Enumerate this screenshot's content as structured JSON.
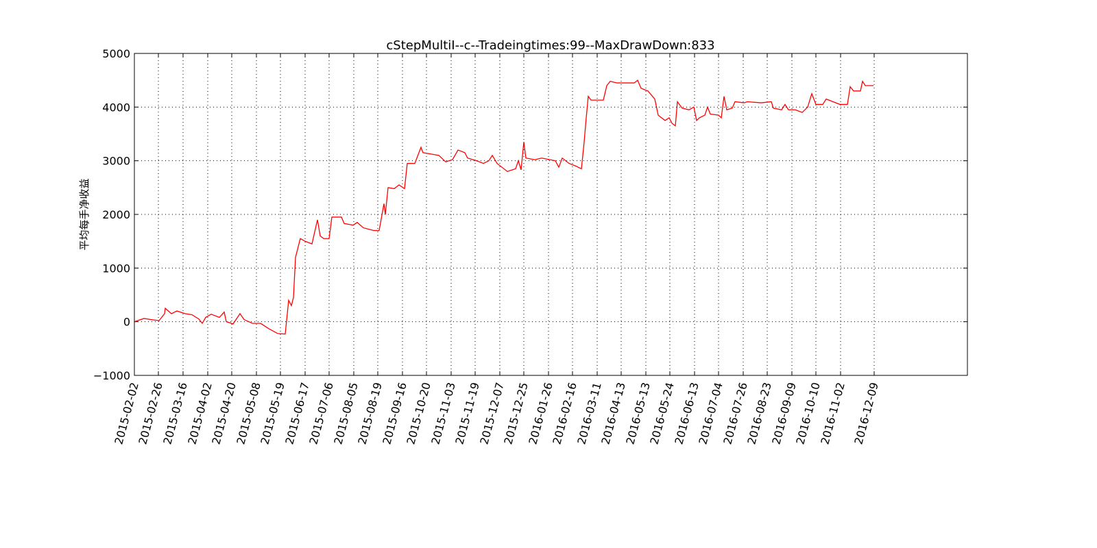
{
  "chart_data": {
    "type": "line",
    "title": "cStepMultiI--c--Tradeingtimes:99--MaxDrawDown:833",
    "ylabel": "平均每手净收益",
    "grid": true,
    "xlim": [
      0,
      1215
    ],
    "ylim": [
      -1000,
      5000
    ],
    "yticks": [
      {
        "value": -1000,
        "label": "−1000"
      },
      0,
      1000,
      2000,
      3000,
      4000,
      5000
    ],
    "xticks": [
      {
        "value": 0,
        "label": "2015-02-02"
      },
      {
        "value": 35,
        "label": "2015-02-26"
      },
      {
        "value": 71,
        "label": "2015-03-16"
      },
      {
        "value": 107,
        "label": "2015-04-02"
      },
      {
        "value": 142,
        "label": "2015-04-20"
      },
      {
        "value": 178,
        "label": "2015-05-08"
      },
      {
        "value": 213,
        "label": "2015-05-19"
      },
      {
        "value": 249,
        "label": "2015-06-17"
      },
      {
        "value": 284,
        "label": "2015-07-06"
      },
      {
        "value": 320,
        "label": "2015-08-05"
      },
      {
        "value": 355,
        "label": "2015-08-19"
      },
      {
        "value": 391,
        "label": "2015-09-16"
      },
      {
        "value": 426,
        "label": "2015-10-20"
      },
      {
        "value": 462,
        "label": "2015-11-03"
      },
      {
        "value": 497,
        "label": "2015-11-19"
      },
      {
        "value": 533,
        "label": "2015-12-07"
      },
      {
        "value": 568,
        "label": "2015-12-25"
      },
      {
        "value": 604,
        "label": "2016-01-26"
      },
      {
        "value": 639,
        "label": "2016-02-16"
      },
      {
        "value": 675,
        "label": "2016-03-11"
      },
      {
        "value": 710,
        "label": "2016-04-13"
      },
      {
        "value": 746,
        "label": "2016-05-13"
      },
      {
        "value": 781,
        "label": "2016-05-24"
      },
      {
        "value": 817,
        "label": "2016-06-13"
      },
      {
        "value": 852,
        "label": "2016-07-04"
      },
      {
        "value": 888,
        "label": "2016-07-26"
      },
      {
        "value": 923,
        "label": "2016-08-23"
      },
      {
        "value": 959,
        "label": "2016-09-09"
      },
      {
        "value": 994,
        "label": "2016-10-10"
      },
      {
        "value": 1030,
        "label": "2016-11-02"
      },
      {
        "value": 1079,
        "label": "2016-12-09"
      }
    ],
    "series": [
      {
        "color": "#ff0000",
        "x": [
          0,
          14,
          24,
          36,
          44,
          45,
          54,
          62,
          74,
          84,
          94,
          99,
          104,
          112,
          124,
          131,
          134,
          144,
          154,
          160,
          172,
          184,
          196,
          209,
          220,
          225,
          229,
          232,
          235,
          242,
          249,
          259,
          267,
          271,
          276,
          284,
          288,
          302,
          306,
          319,
          325,
          334,
          349,
          357,
          364,
          366,
          370,
          379,
          386,
          394,
          398,
          409,
          418,
          421,
          444,
          454,
          464,
          472,
          482,
          486,
          499,
          509,
          517,
          522,
          529,
          544,
          556,
          560,
          564,
          568,
          571,
          584,
          594,
          614,
          619,
          624,
          634,
          644,
          652,
          656,
          659,
          662,
          666,
          684,
          689,
          694,
          704,
          729,
          734,
          739,
          749,
          759,
          764,
          774,
          780,
          784,
          789,
          792,
          799,
          809,
          816,
          820,
          824,
          832,
          836,
          840,
          852,
          856,
          860,
          864,
          872,
          876,
          889,
          894,
          914,
          929,
          932,
          944,
          949,
          954,
          964,
          974,
          982,
          988,
          994,
          1004,
          1009,
          1019,
          1029,
          1040,
          1044,
          1049,
          1059,
          1062,
          1066,
          1078
        ],
        "values": [
          0,
          60,
          40,
          20,
          150,
          250,
          150,
          200,
          150,
          130,
          50,
          -30,
          80,
          140,
          80,
          180,
          0,
          -40,
          150,
          40,
          -30,
          -30,
          -130,
          -220,
          -230,
          400,
          300,
          450,
          1200,
          1550,
          1500,
          1450,
          1900,
          1600,
          1550,
          1550,
          1950,
          1950,
          1830,
          1800,
          1850,
          1750,
          1700,
          1700,
          2200,
          2000,
          2500,
          2480,
          2550,
          2480,
          2950,
          2950,
          3250,
          3150,
          3100,
          2980,
          3020,
          3200,
          3150,
          3050,
          3000,
          2950,
          3000,
          3100,
          2950,
          2800,
          2850,
          3000,
          2830,
          3350,
          3050,
          3020,
          3050,
          3000,
          2880,
          3050,
          2950,
          2900,
          2850,
          3350,
          3800,
          4200,
          4130,
          4130,
          4400,
          4480,
          4450,
          4450,
          4500,
          4350,
          4300,
          4150,
          3850,
          3750,
          3800,
          3700,
          3650,
          4100,
          3980,
          3950,
          4000,
          3750,
          3800,
          3850,
          4000,
          3870,
          3850,
          3800,
          4200,
          3950,
          3980,
          4100,
          4080,
          4100,
          4080,
          4100,
          3980,
          3950,
          4050,
          3950,
          3950,
          3900,
          4000,
          4250,
          4050,
          4050,
          4150,
          4100,
          4050,
          4050,
          4380,
          4300,
          4300,
          4480,
          4400,
          4400
        ]
      }
    ]
  }
}
